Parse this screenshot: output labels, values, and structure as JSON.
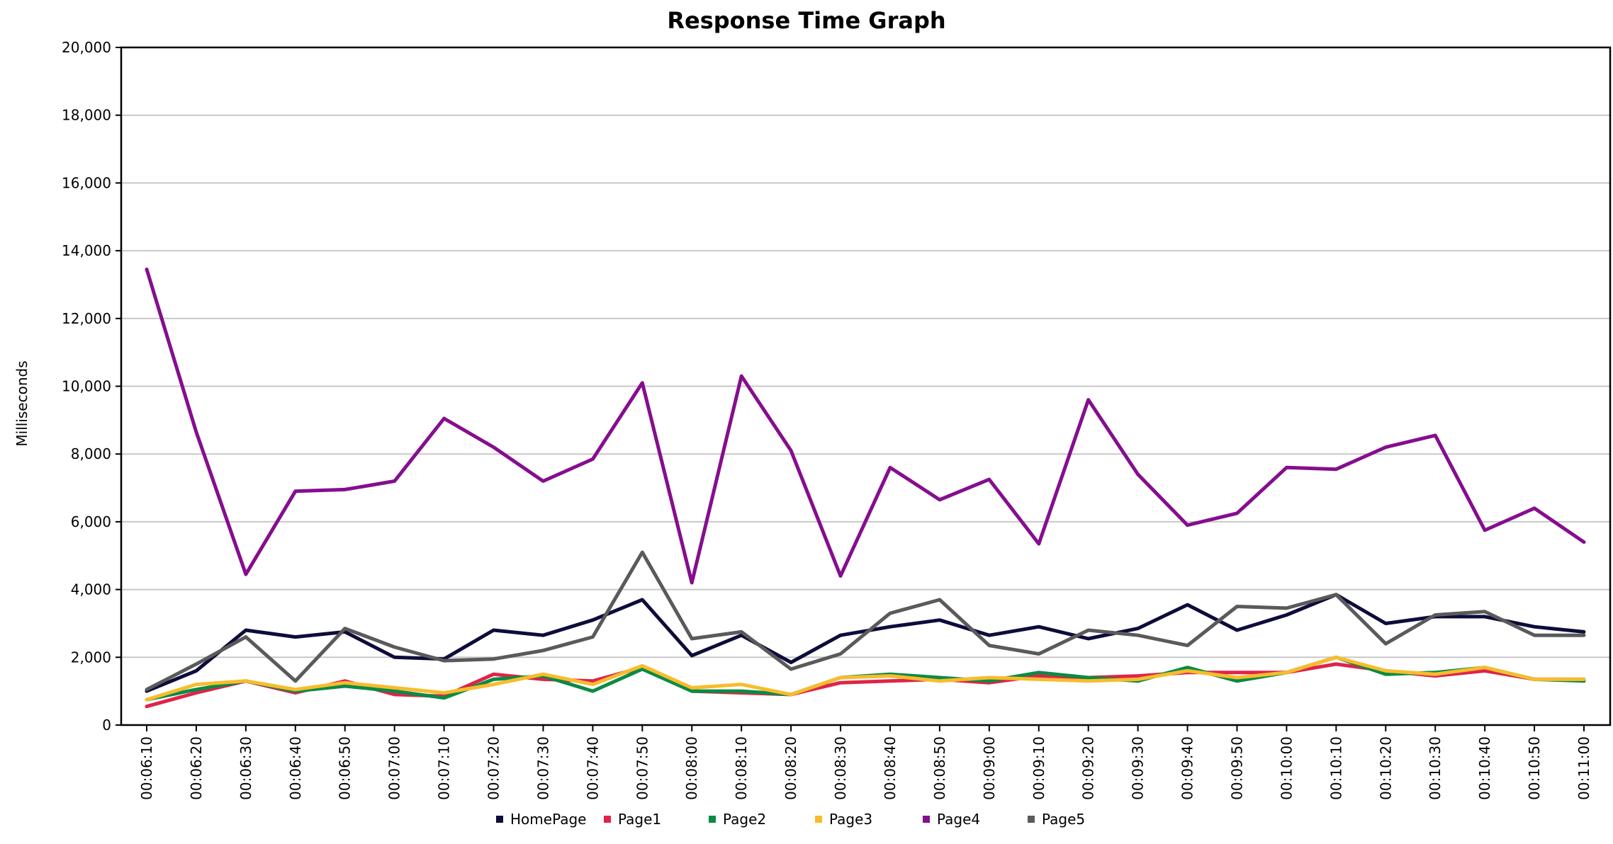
{
  "chart_data": {
    "type": "line",
    "title": "Response Time Graph",
    "xlabel": "",
    "ylabel": "Milliseconds",
    "ylim": [
      0,
      20000
    ],
    "yticks": [
      0,
      2000,
      4000,
      6000,
      8000,
      10000,
      12000,
      14000,
      16000,
      18000,
      20000
    ],
    "ytick_labels": [
      "0",
      "2,000",
      "4,000",
      "6,000",
      "8,000",
      "10,000",
      "12,000",
      "14,000",
      "16,000",
      "18,000",
      "20,000"
    ],
    "grid": "horizontal",
    "legend_position": "bottom",
    "x": [
      "00:06:10",
      "00:06:20",
      "00:06:30",
      "00:06:40",
      "00:06:50",
      "00:07:00",
      "00:07:10",
      "00:07:20",
      "00:07:30",
      "00:07:40",
      "00:07:50",
      "00:08:00",
      "00:08:10",
      "00:08:20",
      "00:08:30",
      "00:08:40",
      "00:08:50",
      "00:09:00",
      "00:09:10",
      "00:09:20",
      "00:09:30",
      "00:09:40",
      "00:09:50",
      "00:10:00",
      "00:10:10",
      "00:10:20",
      "00:10:30",
      "00:10:40",
      "00:10:50",
      "00:11:00"
    ],
    "series": [
      {
        "name": "HomePage",
        "color": "#0d0c3a",
        "values": [
          1000,
          1600,
          2800,
          2600,
          2750,
          2000,
          1950,
          2800,
          2650,
          3100,
          3700,
          2050,
          2650,
          1850,
          2650,
          2900,
          3100,
          2650,
          2900,
          2550,
          2850,
          3550,
          2800,
          3250,
          3850,
          3000,
          3200,
          3200,
          2900,
          2750
        ]
      },
      {
        "name": "Page1",
        "color": "#e0234a",
        "values": [
          550,
          950,
          1300,
          950,
          1300,
          900,
          850,
          1500,
          1350,
          1300,
          1700,
          1000,
          950,
          900,
          1250,
          1300,
          1350,
          1250,
          1450,
          1400,
          1450,
          1550,
          1550,
          1550,
          1800,
          1600,
          1450,
          1600,
          1350,
          1350
        ]
      },
      {
        "name": "Page2",
        "color": "#0a8b45",
        "values": [
          750,
          1050,
          1300,
          1000,
          1150,
          1000,
          800,
          1350,
          1450,
          1000,
          1650,
          1000,
          1000,
          900,
          1400,
          1500,
          1400,
          1300,
          1550,
          1400,
          1300,
          1700,
          1300,
          1550,
          2000,
          1500,
          1550,
          1700,
          1350,
          1300
        ]
      },
      {
        "name": "Page3",
        "color": "#f8bc2c",
        "values": [
          750,
          1200,
          1300,
          1050,
          1250,
          1100,
          950,
          1200,
          1500,
          1200,
          1750,
          1100,
          1200,
          900,
          1400,
          1450,
          1300,
          1400,
          1350,
          1300,
          1350,
          1600,
          1400,
          1550,
          2000,
          1600,
          1500,
          1700,
          1350,
          1350
        ]
      },
      {
        "name": "Page4",
        "color": "#850e8e",
        "values": [
          13450,
          8650,
          4450,
          6900,
          6950,
          7200,
          9050,
          8200,
          7200,
          7850,
          10100,
          4200,
          10300,
          8100,
          4400,
          7600,
          6650,
          7250,
          5350,
          9600,
          7400,
          5900,
          6250,
          7600,
          7550,
          8200,
          8550,
          5750,
          6400,
          5400
        ]
      },
      {
        "name": "Page5",
        "color": "#5a5a5a",
        "values": [
          1050,
          1800,
          2600,
          1300,
          2850,
          2300,
          1900,
          1950,
          2200,
          2600,
          5100,
          2550,
          2750,
          1650,
          2100,
          3300,
          3700,
          2350,
          2100,
          2800,
          2650,
          2350,
          3500,
          3450,
          3850,
          2400,
          3250,
          3350,
          2650,
          2650
        ]
      }
    ]
  }
}
